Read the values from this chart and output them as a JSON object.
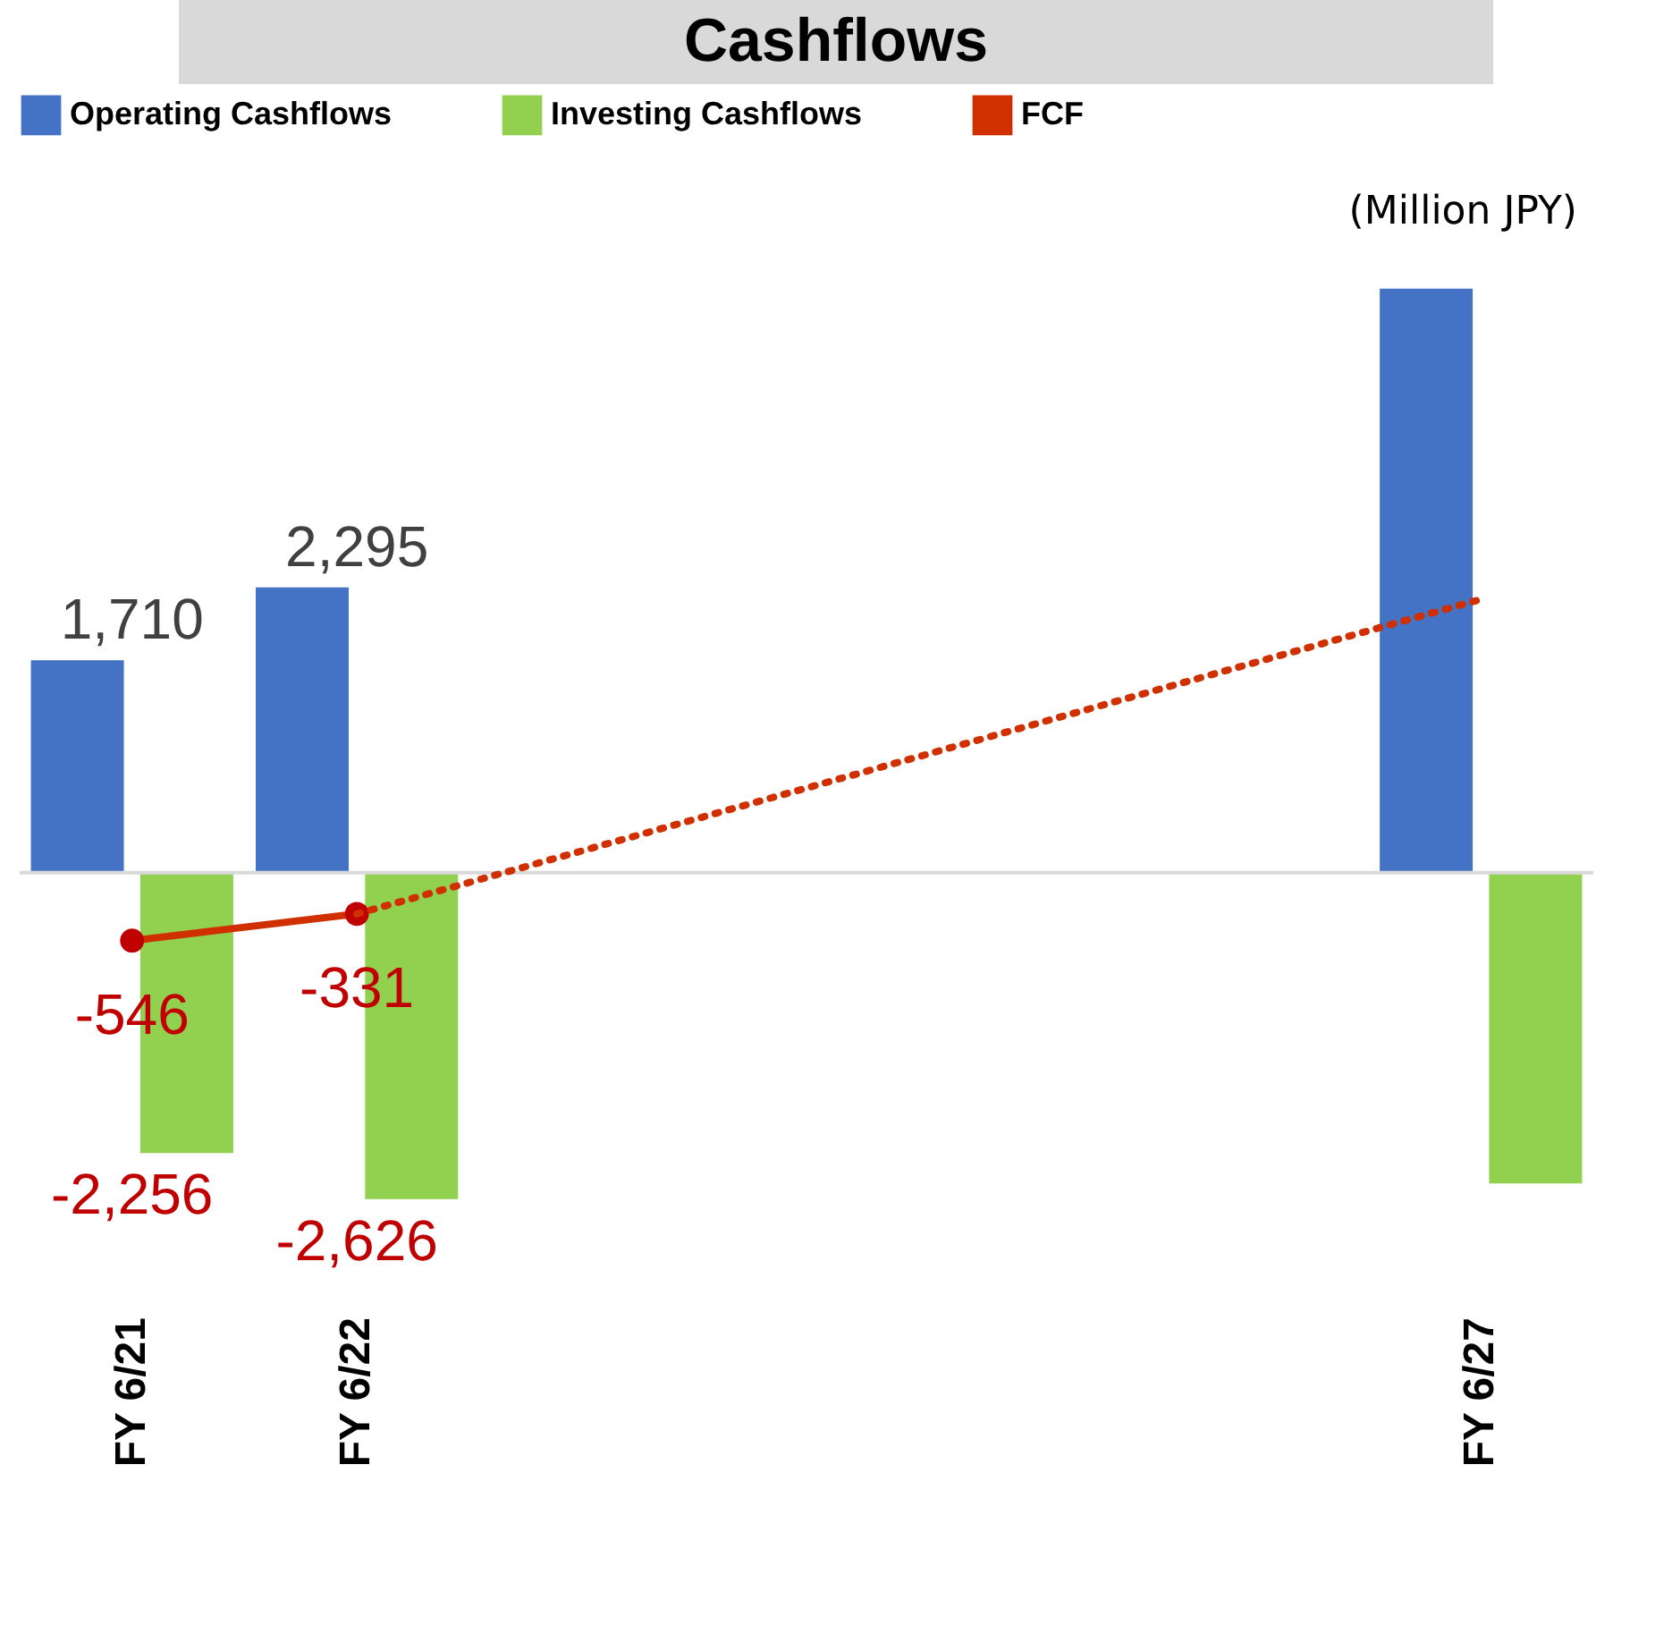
{
  "chart_data": {
    "type": "bar",
    "title": "Cashflows",
    "categories": [
      "FY 6/21",
      "FY 6/22",
      null,
      null,
      null,
      null,
      "FY 6/27"
    ],
    "series": [
      {
        "name": "Operating Cashflows",
        "color": "#4472c4",
        "values": [
          1710,
          2295,
          null,
          null,
          null,
          null,
          4700
        ],
        "value_labels": [
          "1,710",
          "2,295",
          null,
          null,
          null,
          null,
          null
        ]
      },
      {
        "name": "Investing Cashflows",
        "color": "#92d050",
        "values": [
          -2256,
          -2626,
          null,
          null,
          null,
          null,
          -2500
        ],
        "value_labels": [
          "-2,256",
          "-2,626",
          null,
          null,
          null,
          null,
          null
        ]
      },
      {
        "name": "FCF",
        "type": "line",
        "color": "#d03000",
        "marker": "circle",
        "line_style": "solid",
        "values": [
          -546,
          -331,
          null,
          null,
          null,
          null,
          null
        ],
        "value_labels": [
          "-546",
          "-331",
          null,
          null,
          null,
          null,
          null
        ]
      },
      {
        "type": "line",
        "color": "#d03000",
        "marker": "none",
        "line_style": "dotted",
        "values": [
          null,
          -331,
          null,
          null,
          null,
          null,
          2200
        ]
      }
    ],
    "annotations": [
      "(Million JPY)"
    ],
    "ref_lines": [
      {
        "axis": "y",
        "value": 0,
        "color": "#d9d9d9"
      }
    ],
    "legend": "top"
  }
}
